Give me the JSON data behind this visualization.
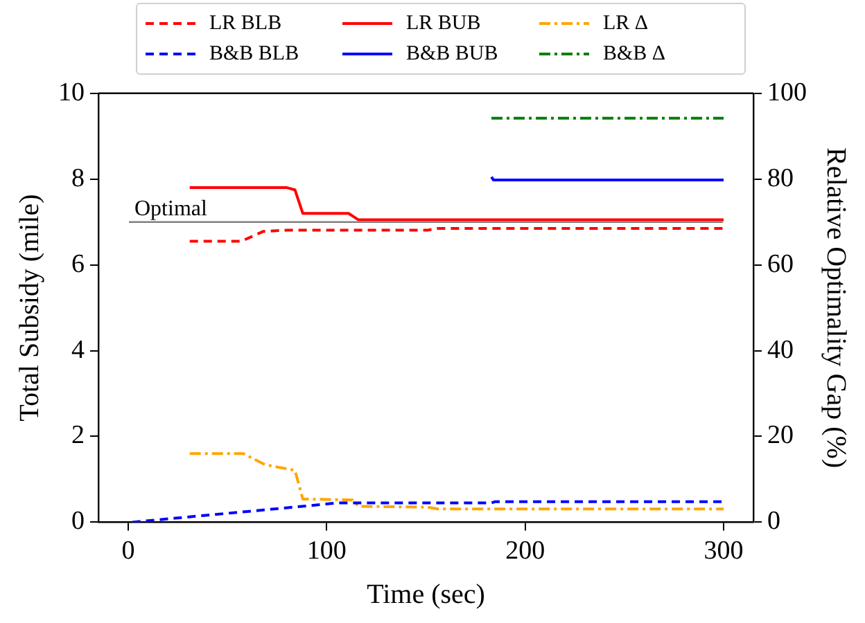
{
  "chart_data": {
    "type": "line",
    "xlabel": "Time (sec)",
    "ylabel": "Total Subsidy (mile)",
    "y2label": "Relative Optimality Gap (%)",
    "xlim": [
      -15,
      315
    ],
    "xticks": [
      0,
      100,
      200,
      300
    ],
    "ylim": [
      0,
      10
    ],
    "yticks": [
      0,
      2,
      4,
      6,
      8,
      10
    ],
    "y2lim": [
      0,
      100
    ],
    "y2ticks": [
      0,
      20,
      40,
      60,
      80,
      100
    ],
    "grid": false,
    "legend": "top",
    "marker": "none",
    "ref_lines": [
      {
        "axis": "y",
        "value": 7.0,
        "label": "Optimal",
        "color": "#808080",
        "line_style": "solid"
      }
    ],
    "series": [
      {
        "name": "LR BLB",
        "color": "#ff0000",
        "line_style": "dashed",
        "x": [
          31,
          57,
          68,
          80,
          151,
          156,
          300
        ],
        "values": [
          6.55,
          6.55,
          6.78,
          6.81,
          6.81,
          6.85,
          6.85
        ]
      },
      {
        "name": "B&B BLB",
        "color": "#0000ff",
        "line_style": "dashed",
        "x": [
          2,
          90,
          105,
          183,
          185,
          300
        ],
        "values": [
          0,
          0.38,
          0.45,
          0.45,
          0.48,
          0.48
        ]
      },
      {
        "name": "LR BUB",
        "color": "#ff0000",
        "line_style": "solid",
        "x": [
          31,
          80,
          84,
          88,
          111,
          116,
          300
        ],
        "values": [
          7.8,
          7.8,
          7.75,
          7.2,
          7.2,
          7.05,
          7.05
        ]
      },
      {
        "name": "B&B BUB",
        "color": "#0000ff",
        "line_style": "solid",
        "x": [
          183,
          184,
          300
        ],
        "values": [
          8.05,
          7.98,
          7.98
        ]
      },
      {
        "name": "LR Δ",
        "color": "#ffa500",
        "line_style": "dashdot",
        "axis": "y2",
        "x": [
          31,
          58,
          69,
          84,
          88,
          113,
          116,
          151,
          156,
          300
        ],
        "values": [
          16,
          16,
          13.4,
          12.1,
          5.4,
          5.2,
          3.7,
          3.5,
          3.1,
          3.1
        ]
      },
      {
        "name": "B&B Δ",
        "color": "#008000",
        "line_style": "dashdot",
        "axis": "y2",
        "x": [
          183,
          300
        ],
        "values": [
          94.2,
          94.2
        ]
      }
    ]
  }
}
